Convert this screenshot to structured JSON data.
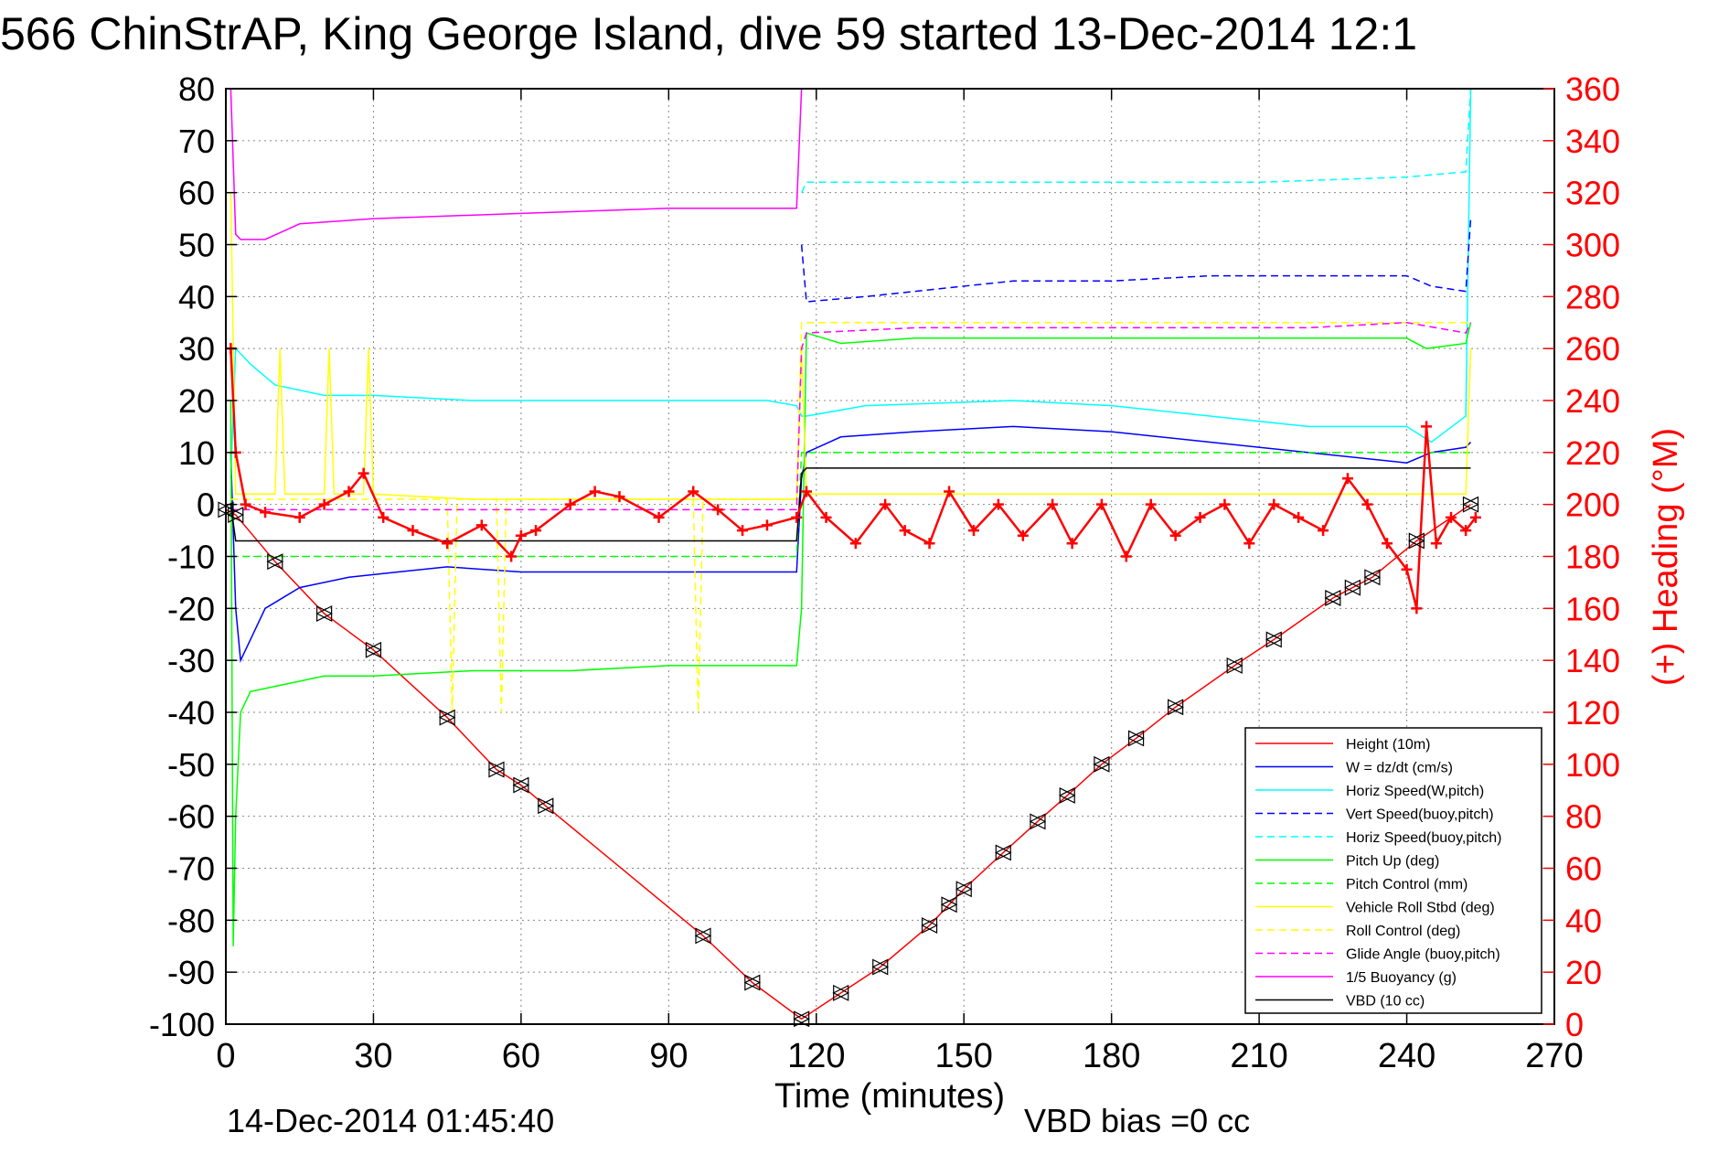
{
  "chart_data": {
    "type": "line",
    "title": "566 ChinStrAP, King George Island, dive 59 started 13-Dec-2014 12:1",
    "xlabel": "Time (minutes)",
    "y2label": "(+) Heading (°M)",
    "footer_left": "14-Dec-2014 01:45:40",
    "footer_right": "VBD bias =0 cc",
    "xlim": [
      0,
      270
    ],
    "ylim": [
      -100,
      80
    ],
    "y2lim": [
      0,
      360
    ],
    "xticks": [
      "0",
      "30",
      "60",
      "90",
      "120",
      "150",
      "180",
      "210",
      "240",
      "270"
    ],
    "yticks": [
      "80",
      "70",
      "60",
      "50",
      "40",
      "30",
      "20",
      "10",
      "0",
      "-10",
      "-20",
      "-30",
      "-40",
      "-50",
      "-60",
      "-70",
      "-80",
      "-90",
      "-100"
    ],
    "y2ticks": [
      "360",
      "340",
      "320",
      "300",
      "280",
      "260",
      "240",
      "220",
      "200",
      "180",
      "160",
      "140",
      "120",
      "100",
      "80",
      "60",
      "40",
      "20",
      "0"
    ],
    "grid": true,
    "legend_position": "lower-right",
    "colors": {
      "axis": "#000000",
      "right_axis": "#ff0000",
      "grid": "#888888"
    },
    "series": [
      {
        "name": "Height (10m)",
        "color": "#ff0000",
        "style": "solid",
        "x": [
          0,
          2,
          10,
          20,
          30,
          45,
          55,
          60,
          65,
          97,
          107,
          117,
          125,
          133,
          143,
          147,
          150,
          158,
          165,
          171,
          178,
          185,
          193,
          205,
          213,
          225,
          229,
          233,
          242,
          253
        ],
        "y": [
          -1,
          -2,
          -11,
          -21,
          -28,
          -41,
          -51,
          -54,
          -58,
          -83,
          -92,
          -99,
          -94,
          -89,
          -81,
          -77,
          -74,
          -67,
          -61,
          -56,
          -50,
          -45,
          -39,
          -31,
          -26,
          -18,
          -16,
          -14,
          -7,
          0
        ]
      },
      {
        "name": "W = dz/dt (cm/s)",
        "color": "#0000ff",
        "style": "solid",
        "x": [
          1,
          2,
          3,
          8,
          15,
          25,
          35,
          45,
          60,
          80,
          100,
          115,
          116,
          117,
          118,
          125,
          140,
          160,
          180,
          200,
          220,
          240,
          245,
          252,
          253
        ],
        "y": [
          10,
          -20,
          -30,
          -20,
          -16,
          -14,
          -13,
          -12,
          -13,
          -13,
          -13,
          -13,
          -13,
          5,
          10,
          13,
          14,
          15,
          14,
          12,
          10,
          8,
          10,
          11,
          12
        ]
      },
      {
        "name": "Horiz Speed(W,pitch)",
        "color": "#00ffff",
        "style": "solid",
        "x": [
          1,
          2,
          5,
          10,
          20,
          30,
          50,
          70,
          90,
          110,
          116,
          117,
          118,
          130,
          160,
          180,
          200,
          220,
          240,
          245,
          252,
          253
        ],
        "y": [
          5,
          30,
          27,
          23,
          21,
          21,
          20,
          20,
          20,
          20,
          19,
          17,
          17,
          19,
          20,
          19,
          17,
          15,
          15,
          12,
          17,
          80
        ]
      },
      {
        "name": "Vert Speed(buoy,pitch)",
        "color": "#0000ff",
        "style": "dashed",
        "x": [
          117,
          118,
          130,
          140,
          160,
          180,
          200,
          220,
          240,
          245,
          252,
          253
        ],
        "y": [
          50,
          39,
          40,
          41,
          43,
          43,
          44,
          44,
          44,
          42,
          41,
          55
        ]
      },
      {
        "name": "Horiz Speed(buoy,pitch)",
        "color": "#00ffff",
        "style": "dashed",
        "x": [
          117,
          118,
          130,
          150,
          180,
          210,
          240,
          252,
          253
        ],
        "y": [
          60,
          62,
          62,
          62,
          62,
          62,
          63,
          64,
          80
        ]
      },
      {
        "name": "Pitch Up (deg)",
        "color": "#00ff00",
        "style": "solid",
        "x": [
          1,
          1.5,
          2,
          3,
          5,
          10,
          20,
          30,
          50,
          70,
          90,
          110,
          116,
          117,
          118,
          125,
          140,
          160,
          180,
          200,
          220,
          240,
          244,
          252,
          253
        ],
        "y": [
          20,
          -85,
          -60,
          -40,
          -36,
          -35,
          -33,
          -33,
          -32,
          -32,
          -31,
          -31,
          -31,
          -20,
          33,
          31,
          32,
          32,
          32,
          32,
          32,
          32,
          30,
          31,
          35
        ]
      },
      {
        "name": "Pitch Control (mm)",
        "color": "#00ff00",
        "style": "dashed",
        "x": [
          1,
          116,
          117,
          253
        ],
        "y": [
          -10,
          -10,
          10,
          10
        ]
      },
      {
        "name": "Vehicle Roll Stbd (deg)",
        "color": "#ffff00",
        "style": "solid",
        "x": [
          1,
          2,
          10,
          11,
          12,
          20,
          21,
          22,
          28,
          29,
          30,
          50,
          100,
          116,
          117,
          118,
          150,
          200,
          240,
          252,
          253
        ],
        "y": [
          60,
          2,
          2,
          30,
          2,
          2,
          30,
          2,
          2,
          30,
          2,
          1,
          1,
          1,
          30,
          2,
          2,
          2,
          2,
          2,
          30
        ]
      },
      {
        "name": "Roll Control (deg)",
        "color": "#ffff00",
        "style": "dashed",
        "x": [
          1,
          40,
          45,
          46,
          47,
          55,
          56,
          57,
          95,
          96,
          97,
          116,
          117,
          253
        ],
        "y": [
          1,
          1,
          1,
          -40,
          1,
          1,
          -40,
          1,
          1,
          -40,
          1,
          1,
          35,
          35
        ]
      },
      {
        "name": "Glide Angle (buoy,pitch)",
        "color": "#ff00ff",
        "style": "dashed",
        "x": [
          1,
          116,
          117,
          118,
          140,
          180,
          220,
          240,
          252,
          253
        ],
        "y": [
          -1,
          -1,
          30,
          33,
          34,
          34,
          34,
          35,
          33,
          35
        ]
      },
      {
        "name": "1/5 Buoyancy (g)",
        "color": "#ff00ff",
        "style": "solid",
        "x": [
          1,
          2,
          3,
          8,
          15,
          30,
          60,
          90,
          116,
          117
        ],
        "y": [
          80,
          52,
          51,
          51,
          54,
          55,
          56,
          57,
          57,
          80
        ]
      },
      {
        "name": "VBD (10 cc)",
        "color": "#000000",
        "style": "solid",
        "x": [
          1,
          2,
          116,
          117,
          118,
          253
        ],
        "y": [
          0,
          -7,
          -7,
          6,
          7,
          7
        ]
      },
      {
        "name": "Heading (°M)",
        "color": "#ff0000",
        "style": "plus",
        "axis": "right",
        "x": [
          1,
          2,
          4,
          8,
          15,
          20,
          25,
          28,
          32,
          38,
          45,
          52,
          58,
          60,
          63,
          70,
          75,
          80,
          88,
          95,
          100,
          105,
          110,
          116,
          118,
          122,
          128,
          134,
          138,
          143,
          147,
          152,
          157,
          162,
          168,
          172,
          178,
          183,
          188,
          193,
          198,
          203,
          208,
          213,
          218,
          223,
          228,
          232,
          236,
          240,
          242,
          244,
          246,
          249,
          252,
          254
        ],
        "y": [
          260,
          220,
          200,
          197,
          195,
          200,
          205,
          212,
          195,
          190,
          185,
          192,
          180,
          188,
          190,
          200,
          205,
          203,
          195,
          205,
          198,
          190,
          192,
          195,
          205,
          195,
          185,
          200,
          190,
          185,
          205,
          190,
          200,
          188,
          200,
          185,
          200,
          180,
          200,
          188,
          195,
          200,
          185,
          200,
          195,
          190,
          210,
          200,
          185,
          175,
          160,
          230,
          185,
          195,
          190,
          195
        ]
      }
    ]
  }
}
